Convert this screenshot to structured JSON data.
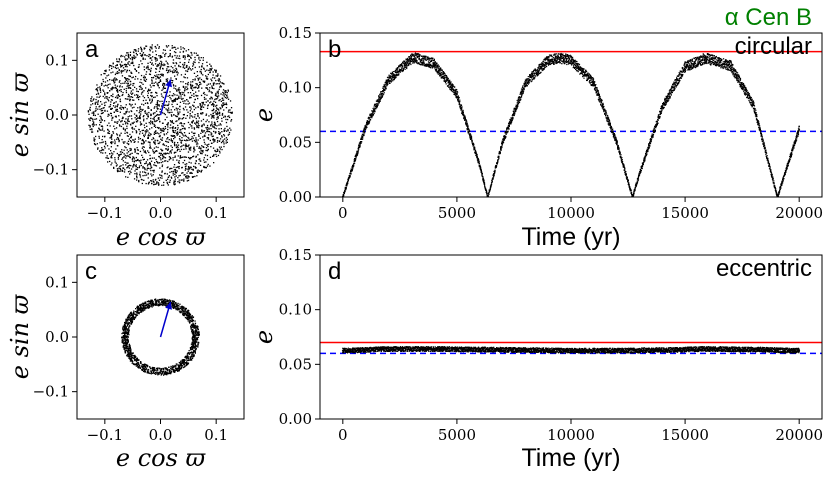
{
  "figure": {
    "title": "α Cen B",
    "title_color": "#008000"
  },
  "chart_data": [
    {
      "id": "a",
      "type": "scatter",
      "panel_label": "a",
      "xlabel": "e cos ϖ",
      "ylabel": "e sin ϖ",
      "xlim": [
        -0.15,
        0.15
      ],
      "ylim": [
        -0.15,
        0.15
      ],
      "xticks": [
        "−0.1",
        "0.0",
        "0.1"
      ],
      "xtick_values": [
        -0.1,
        0.0,
        0.1
      ],
      "yticks": [
        "−0.1",
        "0.0",
        "0.1"
      ],
      "ytick_values": [
        -0.1,
        0.0,
        0.1
      ],
      "distribution": {
        "shape": "filled disk",
        "center": [
          0.0,
          0.0
        ],
        "max_radius": 0.13,
        "point_color": "#000000"
      },
      "vector": {
        "from": [
          0.0,
          0.0
        ],
        "to": [
          0.018,
          0.065
        ],
        "color": "#0000cc"
      }
    },
    {
      "id": "b",
      "type": "line",
      "panel_label": "b",
      "annotation": "circular",
      "xlabel": "Time (yr)",
      "ylabel": "e",
      "xlim": [
        -1000,
        21000
      ],
      "ylim": [
        0.0,
        0.15
      ],
      "xticks": [
        "0",
        "5000",
        "10000",
        "15000",
        "20000"
      ],
      "xtick_values": [
        0,
        5000,
        10000,
        15000,
        20000
      ],
      "yticks": [
        "0.00",
        "0.05",
        "0.10",
        "0.15"
      ],
      "ytick_values": [
        0.0,
        0.05,
        0.1,
        0.15
      ],
      "series": [
        {
          "color": "#000000",
          "x": [
            0,
            1000,
            2000,
            3000,
            3200,
            4000,
            5000,
            6000,
            6350,
            7000,
            8000,
            9000,
            9550,
            10000,
            11000,
            12000,
            12700,
            13000,
            14000,
            15000,
            15900,
            17000,
            18000,
            19000,
            19050,
            20000
          ],
          "y": [
            0.0,
            0.064,
            0.107,
            0.126,
            0.127,
            0.122,
            0.094,
            0.029,
            0.0,
            0.05,
            0.104,
            0.125,
            0.127,
            0.125,
            0.104,
            0.05,
            0.0,
            0.021,
            0.082,
            0.119,
            0.127,
            0.12,
            0.084,
            0.004,
            0.0,
            0.062
          ]
        }
      ],
      "hlines": [
        {
          "y": 0.133,
          "color": "#ff0000",
          "style": "solid"
        },
        {
          "y": 0.06,
          "color": "#0000ff",
          "style": "dashed"
        }
      ]
    },
    {
      "id": "c",
      "type": "scatter",
      "panel_label": "c",
      "xlabel": "e cos ϖ",
      "ylabel": "e sin ϖ",
      "xlim": [
        -0.15,
        0.15
      ],
      "ylim": [
        -0.15,
        0.15
      ],
      "xticks": [
        "−0.1",
        "0.0",
        "0.1"
      ],
      "xtick_values": [
        -0.1,
        0.0,
        0.1
      ],
      "yticks": [
        "−0.1",
        "0.0",
        "0.1"
      ],
      "ytick_values": [
        -0.1,
        0.0,
        0.1
      ],
      "distribution": {
        "shape": "ring",
        "center": [
          0.0,
          0.0
        ],
        "inner_radius": 0.057,
        "outer_radius": 0.07,
        "point_color": "#000000"
      },
      "vector": {
        "from": [
          0.0,
          0.0
        ],
        "to": [
          0.018,
          0.064
        ],
        "color": "#0000cc"
      }
    },
    {
      "id": "d",
      "type": "line",
      "panel_label": "d",
      "annotation": "eccentric",
      "xlabel": "Time (yr)",
      "ylabel": "e",
      "xlim": [
        -1000,
        21000
      ],
      "ylim": [
        0.0,
        0.15
      ],
      "xticks": [
        "0",
        "5000",
        "10000",
        "15000",
        "20000"
      ],
      "xtick_values": [
        0,
        5000,
        10000,
        15000,
        20000
      ],
      "yticks": [
        "0.00",
        "0.05",
        "0.10",
        "0.15"
      ],
      "ytick_values": [
        0.0,
        0.05,
        0.1,
        0.15
      ],
      "series": [
        {
          "color": "#000000",
          "x": [
            0,
            2000,
            4000,
            6000,
            8000,
            10000,
            12000,
            14000,
            16000,
            18000,
            20000
          ],
          "y": [
            0.0625,
            0.064,
            0.064,
            0.0635,
            0.063,
            0.0625,
            0.0625,
            0.063,
            0.064,
            0.0635,
            0.0625
          ]
        }
      ],
      "hlines": [
        {
          "y": 0.07,
          "color": "#ff0000",
          "style": "solid"
        },
        {
          "y": 0.06,
          "color": "#0000ff",
          "style": "dashed"
        }
      ]
    }
  ]
}
